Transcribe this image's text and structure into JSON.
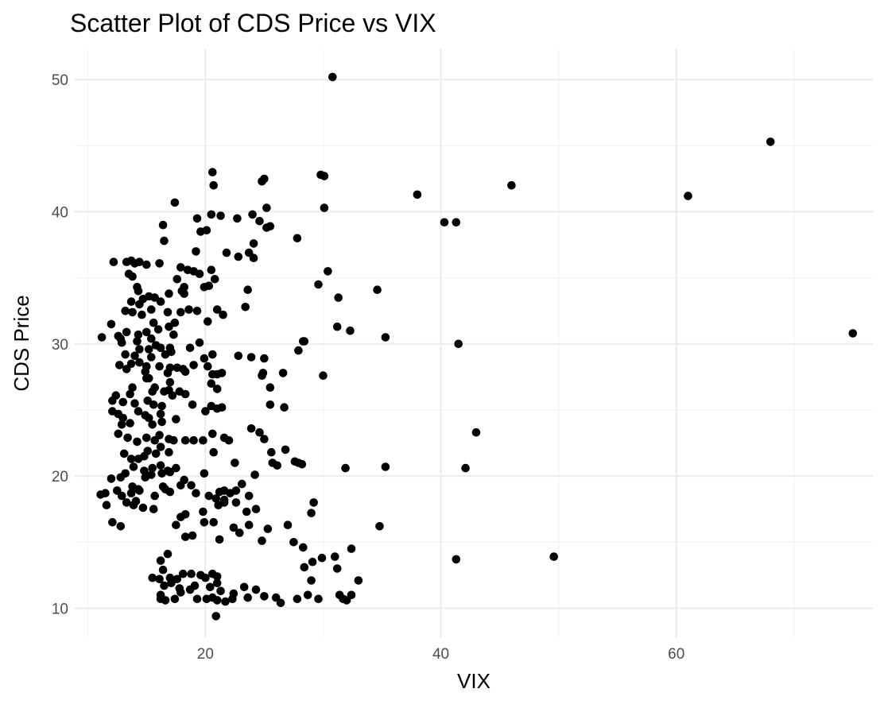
{
  "chart_data": {
    "type": "scatter",
    "title": "Scatter Plot of CDS Price vs VIX",
    "xlabel": "VIX",
    "ylabel": "CDS Price",
    "xlim": [
      8.9,
      76.7
    ],
    "ylim": [
      7.8,
      52.3
    ],
    "x_ticks": [
      20,
      40,
      60
    ],
    "y_ticks": [
      10,
      20,
      30,
      40,
      50
    ],
    "x_minor": [
      10,
      30,
      50,
      70
    ],
    "y_minor": [
      15,
      25,
      35,
      45
    ],
    "grid": true,
    "legend": "none",
    "point_color": "#000000",
    "points": [
      [
        30.8,
        50.2
      ],
      [
        68.0,
        45.3
      ],
      [
        20.6,
        43.0
      ],
      [
        24.8,
        42.3
      ],
      [
        25.0,
        42.5
      ],
      [
        29.8,
        42.8
      ],
      [
        30.1,
        42.7
      ],
      [
        46.0,
        42.0
      ],
      [
        20.7,
        42.0
      ],
      [
        38.0,
        41.3
      ],
      [
        61.0,
        41.2
      ],
      [
        17.4,
        40.7
      ],
      [
        40.3,
        39.2
      ],
      [
        41.3,
        39.2
      ],
      [
        25.2,
        40.3
      ],
      [
        30.1,
        40.3
      ],
      [
        20.5,
        39.8
      ],
      [
        21.3,
        39.7
      ],
      [
        22.7,
        39.5
      ],
      [
        24.0,
        39.8
      ],
      [
        19.3,
        39.5
      ],
      [
        16.4,
        39.0
      ],
      [
        24.6,
        39.3
      ],
      [
        25.2,
        38.8
      ],
      [
        19.6,
        38.5
      ],
      [
        20.1,
        38.6
      ],
      [
        25.5,
        38.9
      ],
      [
        16.5,
        37.8
      ],
      [
        27.8,
        38.0
      ],
      [
        24.1,
        37.6
      ],
      [
        19.2,
        37.0
      ],
      [
        21.8,
        36.9
      ],
      [
        22.8,
        36.6
      ],
      [
        23.7,
        36.9
      ],
      [
        24.1,
        36.5
      ],
      [
        12.2,
        36.2
      ],
      [
        13.3,
        36.2
      ],
      [
        13.7,
        36.3
      ],
      [
        14.0,
        36.1
      ],
      [
        14.4,
        36.2
      ],
      [
        15.0,
        36.0
      ],
      [
        16.1,
        36.1
      ],
      [
        17.9,
        35.8
      ],
      [
        18.5,
        35.6
      ],
      [
        19.0,
        35.5
      ],
      [
        19.5,
        35.3
      ],
      [
        20.5,
        35.6
      ],
      [
        30.4,
        35.5
      ],
      [
        13.5,
        35.3
      ],
      [
        13.8,
        35.1
      ],
      [
        17.6,
        34.9
      ],
      [
        20.8,
        34.9
      ],
      [
        19.9,
        34.3
      ],
      [
        20.3,
        34.4
      ],
      [
        14.2,
        34.3
      ],
      [
        14.3,
        34.0
      ],
      [
        18.2,
        34.3
      ],
      [
        18.0,
        34.0
      ],
      [
        23.6,
        34.1
      ],
      [
        29.6,
        34.5
      ],
      [
        34.6,
        34.1
      ],
      [
        31.3,
        33.5
      ],
      [
        13.7,
        33.2
      ],
      [
        14.7,
        33.4
      ],
      [
        15.2,
        33.6
      ],
      [
        15.7,
        33.5
      ],
      [
        16.2,
        33.2
      ],
      [
        16.9,
        33.8
      ],
      [
        18.2,
        33.8
      ],
      [
        14.4,
        33.0
      ],
      [
        13.2,
        32.5
      ],
      [
        13.8,
        32.4
      ],
      [
        14.6,
        32.2
      ],
      [
        15.4,
        32.6
      ],
      [
        16.8,
        32.4
      ],
      [
        17.9,
        32.4
      ],
      [
        18.6,
        32.6
      ],
      [
        19.3,
        32.5
      ],
      [
        21.0,
        32.6
      ],
      [
        21.5,
        32.2
      ],
      [
        23.4,
        32.8
      ],
      [
        12.0,
        31.5
      ],
      [
        15.6,
        31.6
      ],
      [
        16.0,
        31.1
      ],
      [
        16.9,
        31.3
      ],
      [
        17.4,
        31.6
      ],
      [
        13.3,
        30.9
      ],
      [
        12.6,
        30.6
      ],
      [
        12.8,
        30.4
      ],
      [
        14.3,
        30.7
      ],
      [
        15.0,
        30.9
      ],
      [
        15.4,
        30.4
      ],
      [
        17.3,
        30.7
      ],
      [
        20.2,
        31.7
      ],
      [
        31.2,
        31.3
      ],
      [
        32.3,
        31.0
      ],
      [
        11.2,
        30.5
      ],
      [
        12.9,
        30.1
      ],
      [
        14.2,
        30.2
      ],
      [
        15.8,
        29.9
      ],
      [
        16.2,
        29.7
      ],
      [
        17.0,
        29.7
      ],
      [
        18.7,
        29.7
      ],
      [
        19.5,
        30.1
      ],
      [
        28.3,
        30.2
      ],
      [
        28.4,
        30.2
      ],
      [
        35.3,
        30.5
      ],
      [
        41.5,
        30.0
      ],
      [
        75.0,
        30.8
      ],
      [
        13.2,
        29.2
      ],
      [
        14.0,
        29.1
      ],
      [
        14.4,
        29.6
      ],
      [
        15.2,
        29.6
      ],
      [
        15.4,
        29.0
      ],
      [
        16.6,
        29.2
      ],
      [
        17.1,
        29.4
      ],
      [
        19.9,
        28.9
      ],
      [
        20.6,
        29.2
      ],
      [
        22.8,
        29.1
      ],
      [
        23.9,
        29.0
      ],
      [
        25.0,
        28.9
      ],
      [
        27.9,
        29.5
      ],
      [
        12.7,
        28.4
      ],
      [
        13.7,
        28.5
      ],
      [
        14.4,
        28.6
      ],
      [
        15.0,
        28.3
      ],
      [
        16.1,
        28.3
      ],
      [
        17.0,
        28.2
      ],
      [
        17.6,
        28.2
      ],
      [
        18.1,
        28.1
      ],
      [
        19.0,
        28.4
      ],
      [
        20.2,
        28.3
      ],
      [
        13.3,
        28.1
      ],
      [
        14.9,
        27.9
      ],
      [
        16.8,
        27.8
      ],
      [
        18.3,
        27.9
      ],
      [
        20.6,
        27.7
      ],
      [
        21.0,
        27.7
      ],
      [
        21.4,
        27.8
      ],
      [
        26.6,
        27.8
      ],
      [
        30.0,
        27.6
      ],
      [
        15.2,
        27.4
      ],
      [
        15.0,
        27.4
      ],
      [
        17.0,
        27.1
      ],
      [
        20.5,
        27.0
      ],
      [
        24.8,
        27.6
      ],
      [
        24.9,
        27.8
      ],
      [
        13.8,
        26.7
      ],
      [
        15.7,
        26.7
      ],
      [
        16.9,
        26.5
      ],
      [
        17.8,
        26.4
      ],
      [
        21.0,
        26.6
      ],
      [
        25.5,
        26.7
      ],
      [
        12.4,
        26.1
      ],
      [
        13.6,
        26.2
      ],
      [
        15.5,
        26.4
      ],
      [
        16.5,
        26.4
      ],
      [
        17.2,
        26.1
      ],
      [
        18.3,
        26.2
      ],
      [
        12.1,
        25.7
      ],
      [
        13.0,
        25.6
      ],
      [
        14.0,
        25.5
      ],
      [
        15.1,
        25.7
      ],
      [
        15.6,
        25.4
      ],
      [
        16.3,
        25.3
      ],
      [
        18.9,
        25.4
      ],
      [
        20.5,
        25.3
      ],
      [
        21.0,
        25.1
      ],
      [
        21.4,
        25.2
      ],
      [
        26.7,
        25.2
      ],
      [
        25.5,
        25.4
      ],
      [
        12.1,
        24.9
      ],
      [
        12.6,
        24.7
      ],
      [
        13.0,
        24.4
      ],
      [
        14.3,
        24.9
      ],
      [
        14.9,
        24.6
      ],
      [
        15.2,
        24.4
      ],
      [
        16.2,
        24.7
      ],
      [
        17.5,
        24.3
      ],
      [
        20.0,
        24.9
      ],
      [
        13.6,
        24.0
      ],
      [
        12.9,
        23.9
      ],
      [
        15.5,
        23.9
      ],
      [
        16.3,
        24.1
      ],
      [
        12.6,
        23.2
      ],
      [
        13.4,
        22.9
      ],
      [
        14.2,
        22.6
      ],
      [
        15.0,
        22.9
      ],
      [
        15.7,
        22.7
      ],
      [
        16.1,
        23.1
      ],
      [
        16.9,
        22.8
      ],
      [
        17.3,
        22.7
      ],
      [
        18.3,
        22.7
      ],
      [
        19.0,
        22.7
      ],
      [
        19.8,
        22.7
      ],
      [
        20.6,
        23.2
      ],
      [
        21.6,
        22.9
      ],
      [
        22.0,
        22.7
      ],
      [
        23.9,
        23.6
      ],
      [
        24.6,
        23.3
      ],
      [
        25.0,
        22.8
      ],
      [
        43.0,
        23.3
      ],
      [
        13.1,
        21.7
      ],
      [
        13.7,
        21.3
      ],
      [
        14.3,
        21.3
      ],
      [
        14.8,
        21.5
      ],
      [
        15.1,
        21.9
      ],
      [
        15.8,
        21.7
      ],
      [
        16.2,
        22.2
      ],
      [
        16.9,
        21.8
      ],
      [
        20.7,
        21.8
      ],
      [
        25.6,
        21.8
      ],
      [
        26.8,
        22.0
      ],
      [
        13.9,
        20.7
      ],
      [
        14.8,
        20.4
      ],
      [
        15.5,
        20.6
      ],
      [
        16.2,
        20.8
      ],
      [
        16.8,
        20.4
      ],
      [
        17.5,
        20.6
      ],
      [
        19.9,
        20.2
      ],
      [
        22.5,
        21.0
      ],
      [
        25.7,
        21.0
      ],
      [
        26.1,
        20.8
      ],
      [
        27.6,
        21.1
      ],
      [
        27.9,
        21.0
      ],
      [
        28.2,
        20.9
      ],
      [
        31.9,
        20.6
      ],
      [
        35.3,
        20.7
      ],
      [
        42.1,
        20.6
      ],
      [
        12.0,
        19.8
      ],
      [
        12.8,
        19.9
      ],
      [
        13.2,
        20.2
      ],
      [
        14.9,
        19.9
      ],
      [
        15.4,
        20.1
      ],
      [
        16.3,
        20.2
      ],
      [
        17.0,
        20.3
      ],
      [
        18.2,
        19.7
      ],
      [
        13.8,
        19.2
      ],
      [
        14.3,
        19.0
      ],
      [
        16.4,
        19.2
      ],
      [
        16.6,
        19.0
      ],
      [
        17.0,
        18.8
      ],
      [
        17.9,
        19.3
      ],
      [
        18.8,
        19.3
      ],
      [
        21.6,
        18.9
      ],
      [
        22.6,
        18.9
      ],
      [
        23.1,
        19.4
      ],
      [
        24.2,
        20.1
      ],
      [
        12.5,
        18.9
      ],
      [
        12.9,
        18.5
      ],
      [
        13.7,
        18.7
      ],
      [
        14.4,
        18.9
      ],
      [
        15.7,
        18.5
      ],
      [
        19.2,
        18.7
      ],
      [
        20.3,
        18.5
      ],
      [
        20.9,
        18.3
      ],
      [
        21.2,
        18.8
      ],
      [
        21.6,
        18.2
      ],
      [
        22.1,
        18.7
      ],
      [
        23.7,
        18.5
      ],
      [
        11.1,
        18.6
      ],
      [
        11.5,
        18.7
      ],
      [
        11.6,
        17.8
      ],
      [
        13.3,
        18.0
      ],
      [
        13.9,
        17.8
      ],
      [
        14.1,
        18.1
      ],
      [
        14.7,
        17.6
      ],
      [
        15.6,
        17.5
      ],
      [
        19.8,
        17.3
      ],
      [
        21.1,
        17.8
      ],
      [
        21.6,
        18.0
      ],
      [
        22.6,
        18.0
      ],
      [
        23.5,
        17.3
      ],
      [
        24.3,
        17.5
      ],
      [
        29.2,
        18.0
      ],
      [
        17.9,
        16.9
      ],
      [
        18.3,
        17.1
      ],
      [
        29.0,
        17.2
      ],
      [
        12.1,
        16.5
      ],
      [
        12.8,
        16.2
      ],
      [
        17.5,
        16.3
      ],
      [
        19.9,
        16.5
      ],
      [
        20.7,
        16.5
      ],
      [
        22.4,
        16.1
      ],
      [
        23.7,
        16.3
      ],
      [
        24.8,
        15.1
      ],
      [
        25.3,
        16.0
      ],
      [
        27.0,
        16.3
      ],
      [
        22.9,
        15.7
      ],
      [
        34.8,
        16.2
      ],
      [
        18.3,
        15.4
      ],
      [
        18.9,
        15.5
      ],
      [
        21.2,
        15.2
      ],
      [
        27.5,
        15.0
      ],
      [
        28.3,
        14.6
      ],
      [
        32.4,
        14.5
      ],
      [
        16.8,
        14.1
      ],
      [
        16.2,
        13.6
      ],
      [
        28.4,
        13.1
      ],
      [
        29.1,
        13.5
      ],
      [
        29.9,
        13.8
      ],
      [
        31.0,
        13.9
      ],
      [
        31.2,
        13.0
      ],
      [
        41.3,
        13.7
      ],
      [
        49.6,
        13.9
      ],
      [
        15.5,
        12.3
      ],
      [
        16.1,
        12.2
      ],
      [
        16.4,
        12.9
      ],
      [
        17.0,
        12.3
      ],
      [
        17.6,
        12.2
      ],
      [
        18.1,
        12.6
      ],
      [
        18.8,
        12.6
      ],
      [
        19.6,
        12.5
      ],
      [
        20.0,
        12.3
      ],
      [
        20.6,
        12.6
      ],
      [
        21.0,
        12.4
      ],
      [
        16.5,
        11.7
      ],
      [
        17.1,
        11.9
      ],
      [
        17.8,
        11.5
      ],
      [
        19.1,
        11.7
      ],
      [
        20.4,
        11.6
      ],
      [
        21.0,
        11.9
      ],
      [
        29.0,
        12.1
      ],
      [
        33.0,
        12.1
      ],
      [
        16.2,
        11.0
      ],
      [
        17.9,
        11.2
      ],
      [
        18.7,
        11.4
      ],
      [
        21.3,
        11.3
      ],
      [
        22.4,
        11.1
      ],
      [
        23.3,
        11.6
      ],
      [
        24.3,
        11.4
      ],
      [
        25.0,
        10.9
      ],
      [
        26.0,
        10.8
      ],
      [
        28.7,
        11.0
      ],
      [
        31.4,
        11.0
      ],
      [
        32.4,
        11.0
      ],
      [
        16.2,
        10.7
      ],
      [
        16.6,
        10.6
      ],
      [
        17.4,
        10.7
      ],
      [
        19.3,
        10.7
      ],
      [
        20.1,
        10.7
      ],
      [
        20.6,
        10.8
      ],
      [
        21.0,
        10.6
      ],
      [
        21.7,
        10.5
      ],
      [
        22.3,
        10.7
      ],
      [
        23.6,
        10.8
      ],
      [
        27.8,
        10.7
      ],
      [
        29.6,
        10.7
      ],
      [
        32.0,
        10.6
      ],
      [
        31.7,
        10.7
      ],
      [
        26.4,
        10.4
      ],
      [
        20.9,
        9.4
      ]
    ]
  }
}
